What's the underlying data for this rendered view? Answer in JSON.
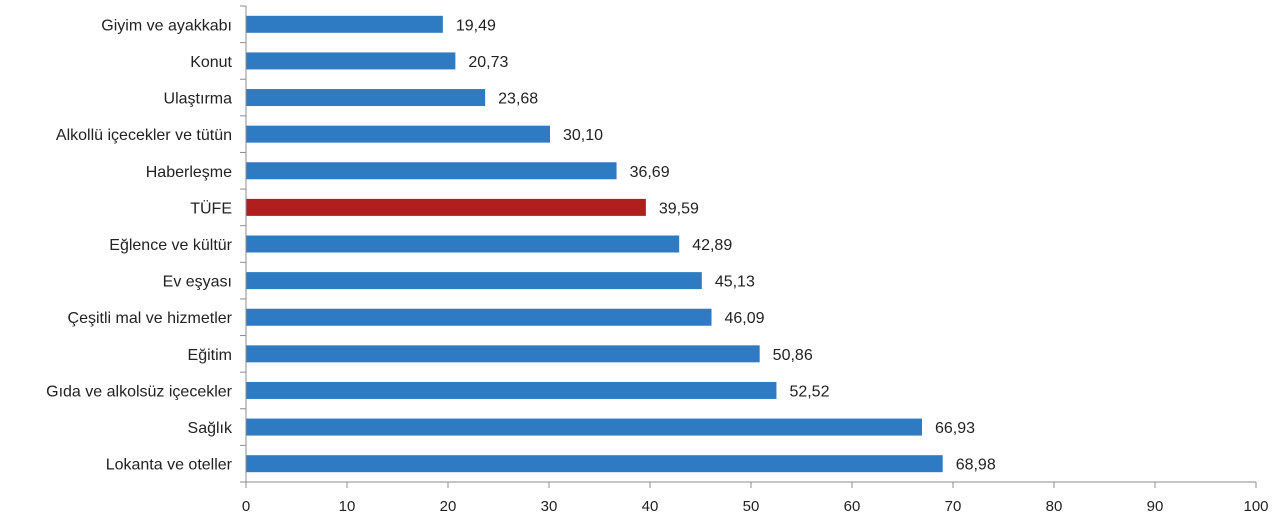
{
  "chart_data": {
    "type": "bar",
    "orientation": "horizontal",
    "categories": [
      "Giyim ve ayakkabı",
      "Konut",
      "Ulaştırma",
      "Alkollü içecekler ve tütün",
      "Haberleşme",
      "TÜFE",
      "Eğlence ve kültür",
      "Ev eşyası",
      "Çeşitli mal ve hizmetler",
      "Eğitim",
      "Gıda ve alkolsüz içecekler",
      "Sağlık",
      "Lokanta ve oteller"
    ],
    "values": [
      19.49,
      20.73,
      23.68,
      30.1,
      36.69,
      39.59,
      42.89,
      45.13,
      46.09,
      50.86,
      52.52,
      66.93,
      68.98
    ],
    "value_labels": [
      "19,49",
      "20,73",
      "23,68",
      "30,10",
      "36,69",
      "39,59",
      "42,89",
      "45,13",
      "46,09",
      "50,86",
      "52,52",
      "66,93",
      "68,98"
    ],
    "highlight_category": "TÜFE",
    "xlim": [
      0,
      100
    ],
    "xticks": [
      0,
      10,
      20,
      30,
      40,
      50,
      60,
      70,
      80,
      90,
      100
    ],
    "title": "",
    "xlabel": "",
    "ylabel": "",
    "grid": false,
    "legend": "none",
    "colors": {
      "bar": "#2E7BC4",
      "highlight": "#B01E1E",
      "axis": "#8C8C8C"
    }
  }
}
